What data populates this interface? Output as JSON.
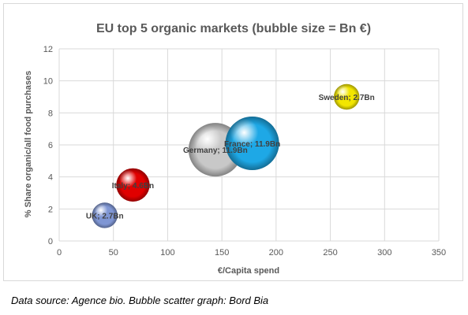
{
  "chart_data": {
    "type": "scatter",
    "subtype": "bubble",
    "title": "EU top 5 organic markets (bubble size = Bn €)",
    "xlabel": "€/Capita spend",
    "ylabel": "% Share organic/all food purchases",
    "xlim": [
      0,
      350
    ],
    "ylim": [
      0,
      12
    ],
    "xticks": [
      "0",
      "50",
      "100",
      "150",
      "200",
      "250",
      "300",
      "350"
    ],
    "yticks": [
      "0",
      "2",
      "4",
      "6",
      "8",
      "10",
      "12"
    ],
    "grid": true,
    "legend": "none",
    "points": [
      {
        "label": "UK; 2.7Bn",
        "x": 42,
        "y": 1.6,
        "size": 2.7,
        "color": "#7f96d4"
      },
      {
        "label": "Italy; 4.6Bn",
        "x": 68,
        "y": 3.5,
        "size": 4.6,
        "color": "#e00000"
      },
      {
        "label": "Germany; 11.9Bn",
        "x": 144,
        "y": 5.7,
        "size": 11.9,
        "color": "#c8c8c8"
      },
      {
        "label": "France; 11.9Bn",
        "x": 178,
        "y": 6.1,
        "size": 11.9,
        "color": "#1ea8e6"
      },
      {
        "label": "Sweden; 2.7Bn",
        "x": 265,
        "y": 9.0,
        "size": 2.7,
        "color": "#f2e600"
      }
    ]
  },
  "source_note": "Data source: Agence bio. Bubble scatter graph: Bord Bia"
}
